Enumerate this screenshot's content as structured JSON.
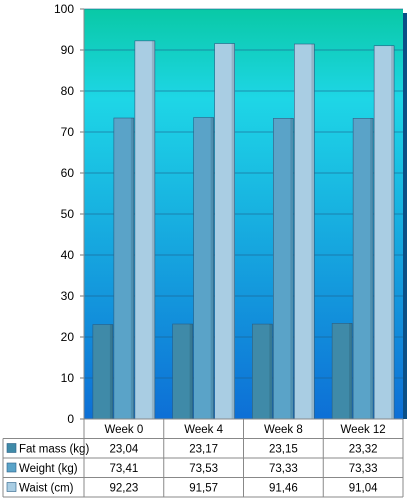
{
  "chart_data": {
    "type": "bar",
    "categories": [
      "Week 0",
      "Week 4",
      "Week 8",
      "Week 12"
    ],
    "series": [
      {
        "name": "Fat mass (kg)",
        "values": [
          "23,04",
          "23,17",
          "23,15",
          "23,32"
        ],
        "numeric": [
          23.04,
          23.17,
          23.15,
          23.32
        ],
        "color": "#3f8aa8"
      },
      {
        "name": "Weight (kg)",
        "values": [
          "73,41",
          "73,53",
          "73,33",
          "73,33"
        ],
        "numeric": [
          73.41,
          73.53,
          73.33,
          73.33
        ],
        "color": "#5aa3c8"
      },
      {
        "name": "Waist (cm)",
        "values": [
          "92,23",
          "91,57",
          "91,46",
          "91,04"
        ],
        "numeric": [
          92.23,
          91.57,
          91.46,
          91.04
        ],
        "color": "#a9cde3"
      }
    ],
    "ylim": [
      0,
      100
    ],
    "yticks": [
      "0",
      "10",
      "20",
      "30",
      "40",
      "50",
      "60",
      "70",
      "80",
      "90",
      "100"
    ],
    "grid": true,
    "data_table": true,
    "background_gradient": [
      "#09c9a6",
      "#1ed6e6",
      "#0d6fd6"
    ]
  }
}
